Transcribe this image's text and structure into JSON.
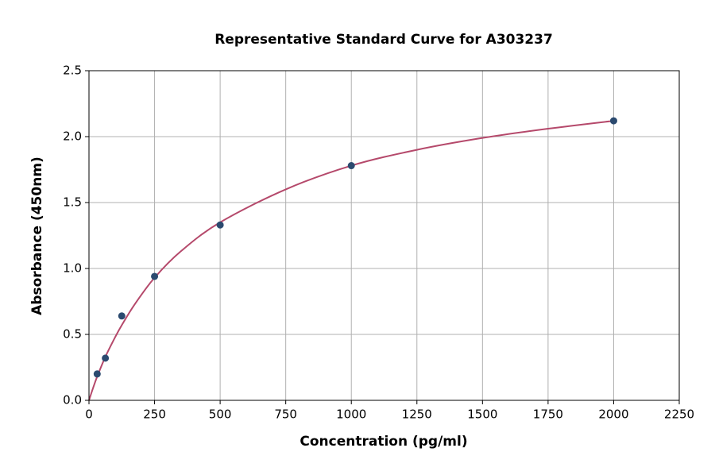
{
  "chart_data": {
    "type": "scatter",
    "title": "Representative Standard Curve for A303237",
    "x_label": "Concentration (pg/ml)",
    "y_label": "Absorbance (450nm)",
    "xlim": [
      0,
      2250
    ],
    "xticks": [
      0,
      250,
      500,
      750,
      1000,
      1250,
      1500,
      1750,
      2000,
      2250
    ],
    "ylim": [
      0,
      2.5
    ],
    "yticks": [
      {
        "value": 0,
        "label": "0.0"
      },
      0.5,
      {
        "value": 1,
        "label": "1.0"
      },
      1.5,
      {
        "value": 2,
        "label": "2.0"
      },
      2.5
    ],
    "grid": true,
    "series": [
      {
        "type": "line",
        "color": "#b5496b",
        "x": [
          0,
          15,
          31.25,
          62.5,
          100,
          125,
          175,
          250,
          350,
          500,
          750,
          1000,
          1250,
          1500,
          1750,
          2000
        ],
        "values": [
          0,
          0.09,
          0.18,
          0.33,
          0.48,
          0.57,
          0.73,
          0.93,
          1.13,
          1.35,
          1.6,
          1.78,
          1.9,
          1.99,
          2.06,
          2.12
        ]
      },
      {
        "type": "scatter",
        "color": "#2b4a6f",
        "x": [
          31.25,
          62.5,
          125,
          250,
          500,
          1000,
          2000
        ],
        "values": [
          0.2,
          0.32,
          0.64,
          0.94,
          1.33,
          1.78,
          2.12
        ]
      }
    ]
  }
}
